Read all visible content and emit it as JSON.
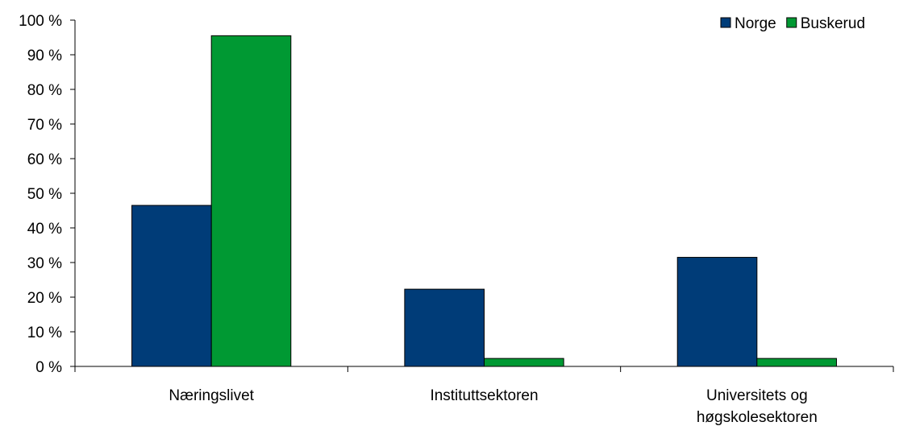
{
  "chart_data": {
    "type": "bar",
    "title": "",
    "xlabel": "",
    "ylabel": "",
    "categories": [
      [
        "Næringslivet"
      ],
      [
        "Instituttsektoren"
      ],
      [
        "Universitets og",
        "høgskolesektoren"
      ]
    ],
    "series": [
      {
        "name": "Norge",
        "color": "#003c78",
        "values": [
          46.5,
          22.3,
          31.5
        ]
      },
      {
        "name": "Buskerud",
        "color": "#009933",
        "values": [
          95.5,
          2.3,
          2.3
        ]
      }
    ],
    "ylim": [
      0,
      100
    ],
    "yticks": [
      "0 %",
      "10 %",
      "20 %",
      "30 %",
      "40 %",
      "50 %",
      "60 %",
      "70 %",
      "80 %",
      "90 %",
      "100 %"
    ],
    "grid": false,
    "legend_position": "top-right"
  }
}
